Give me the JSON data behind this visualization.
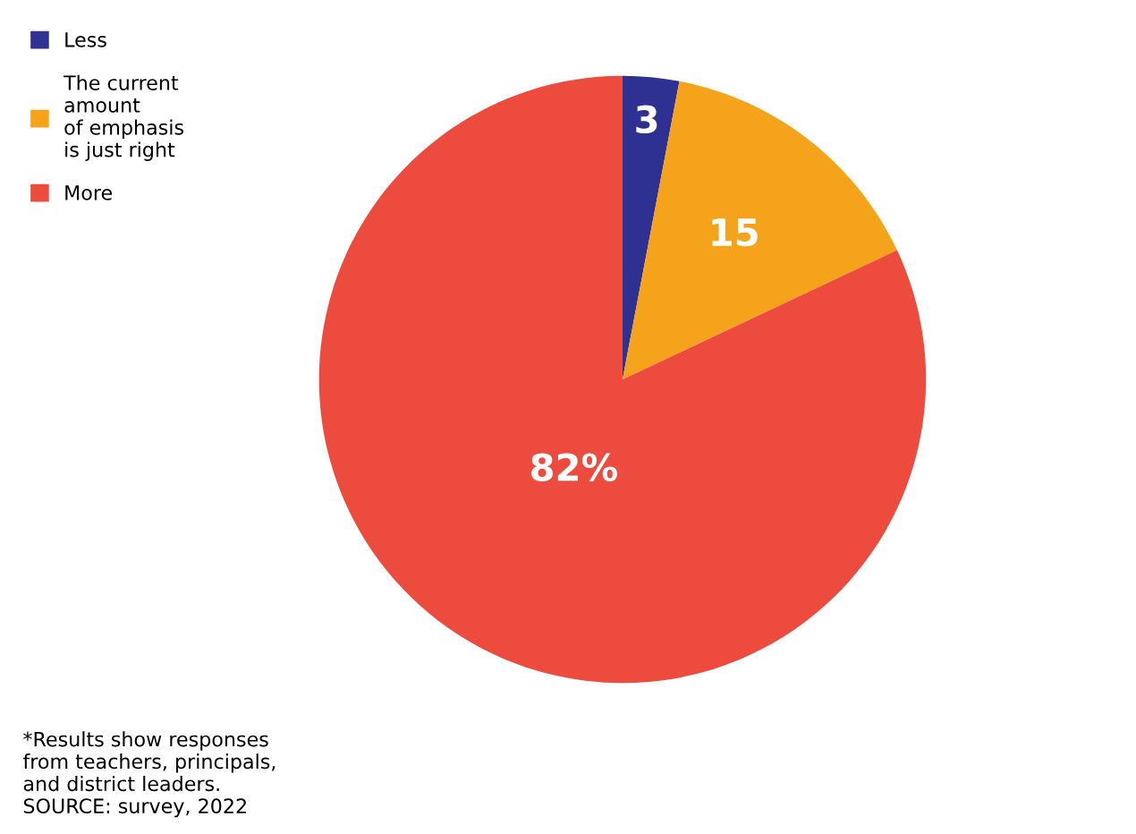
{
  "chart_data": {
    "type": "pie",
    "categories": [
      "Less",
      "The current\namount\nof emphasis\nis just right",
      "More"
    ],
    "values": [
      3,
      15,
      82
    ],
    "colors": [
      "#2e3192",
      "#f5a31a",
      "#ee4b3f"
    ],
    "value_labels": [
      "3",
      "15",
      "82%"
    ],
    "legend": "top left",
    "annotations": [
      "*Results show responses\nfrom teachers, principals,\nand district leaders.\nSOURCE: survey, 2022"
    ]
  }
}
